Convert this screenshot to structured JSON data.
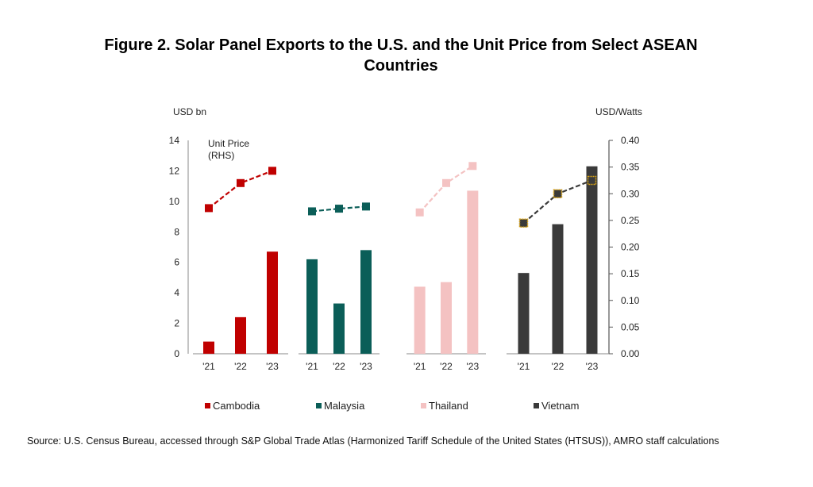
{
  "title_line1": "Figure 2. Solar Panel Exports to the U.S. and the Unit Price from Select ASEAN",
  "title_line2": "Countries",
  "source": "Source: U.S. Census Bureau, accessed through S&P Global Trade Atlas (Harmonized Tariff Schedule of the United States (HTSUS)), AMRO staff calculations",
  "chart_data": {
    "type": "bar",
    "left_axis_label": "USD bn",
    "right_axis_label": "USD/Watts",
    "left_ylim": [
      0,
      14
    ],
    "left_ticks": [
      "0",
      "2",
      "4",
      "6",
      "8",
      "10",
      "12",
      "14"
    ],
    "right_ylim": [
      0,
      0.4
    ],
    "right_ticks": [
      "0.00",
      "0.05",
      "0.10",
      "0.15",
      "0.20",
      "0.25",
      "0.30",
      "0.35",
      "0.40"
    ],
    "unit_price_label": [
      "Unit Price",
      "(RHS)"
    ],
    "categories": [
      "'21",
      "'22",
      "'23"
    ],
    "series": [
      {
        "name": "Cambodia",
        "color": "#c00000",
        "bars": [
          0.8,
          2.4,
          6.7
        ],
        "unit_price": [
          0.273,
          0.32,
          0.343
        ]
      },
      {
        "name": "Malaysia",
        "color": "#0b5e58",
        "bars": [
          6.2,
          3.3,
          6.8
        ],
        "unit_price": [
          0.267,
          0.272,
          0.276
        ]
      },
      {
        "name": "Thailand",
        "color": "#f4c2c2",
        "bars": [
          4.4,
          4.7,
          10.7
        ],
        "unit_price": [
          0.265,
          0.32,
          0.352
        ]
      },
      {
        "name": "Vietnam",
        "color": "#3a3a3a",
        "bars": [
          5.3,
          8.5,
          12.3
        ],
        "unit_price": [
          0.245,
          0.3,
          0.325
        ]
      }
    ],
    "grid": false,
    "legend_position": "bottom"
  }
}
